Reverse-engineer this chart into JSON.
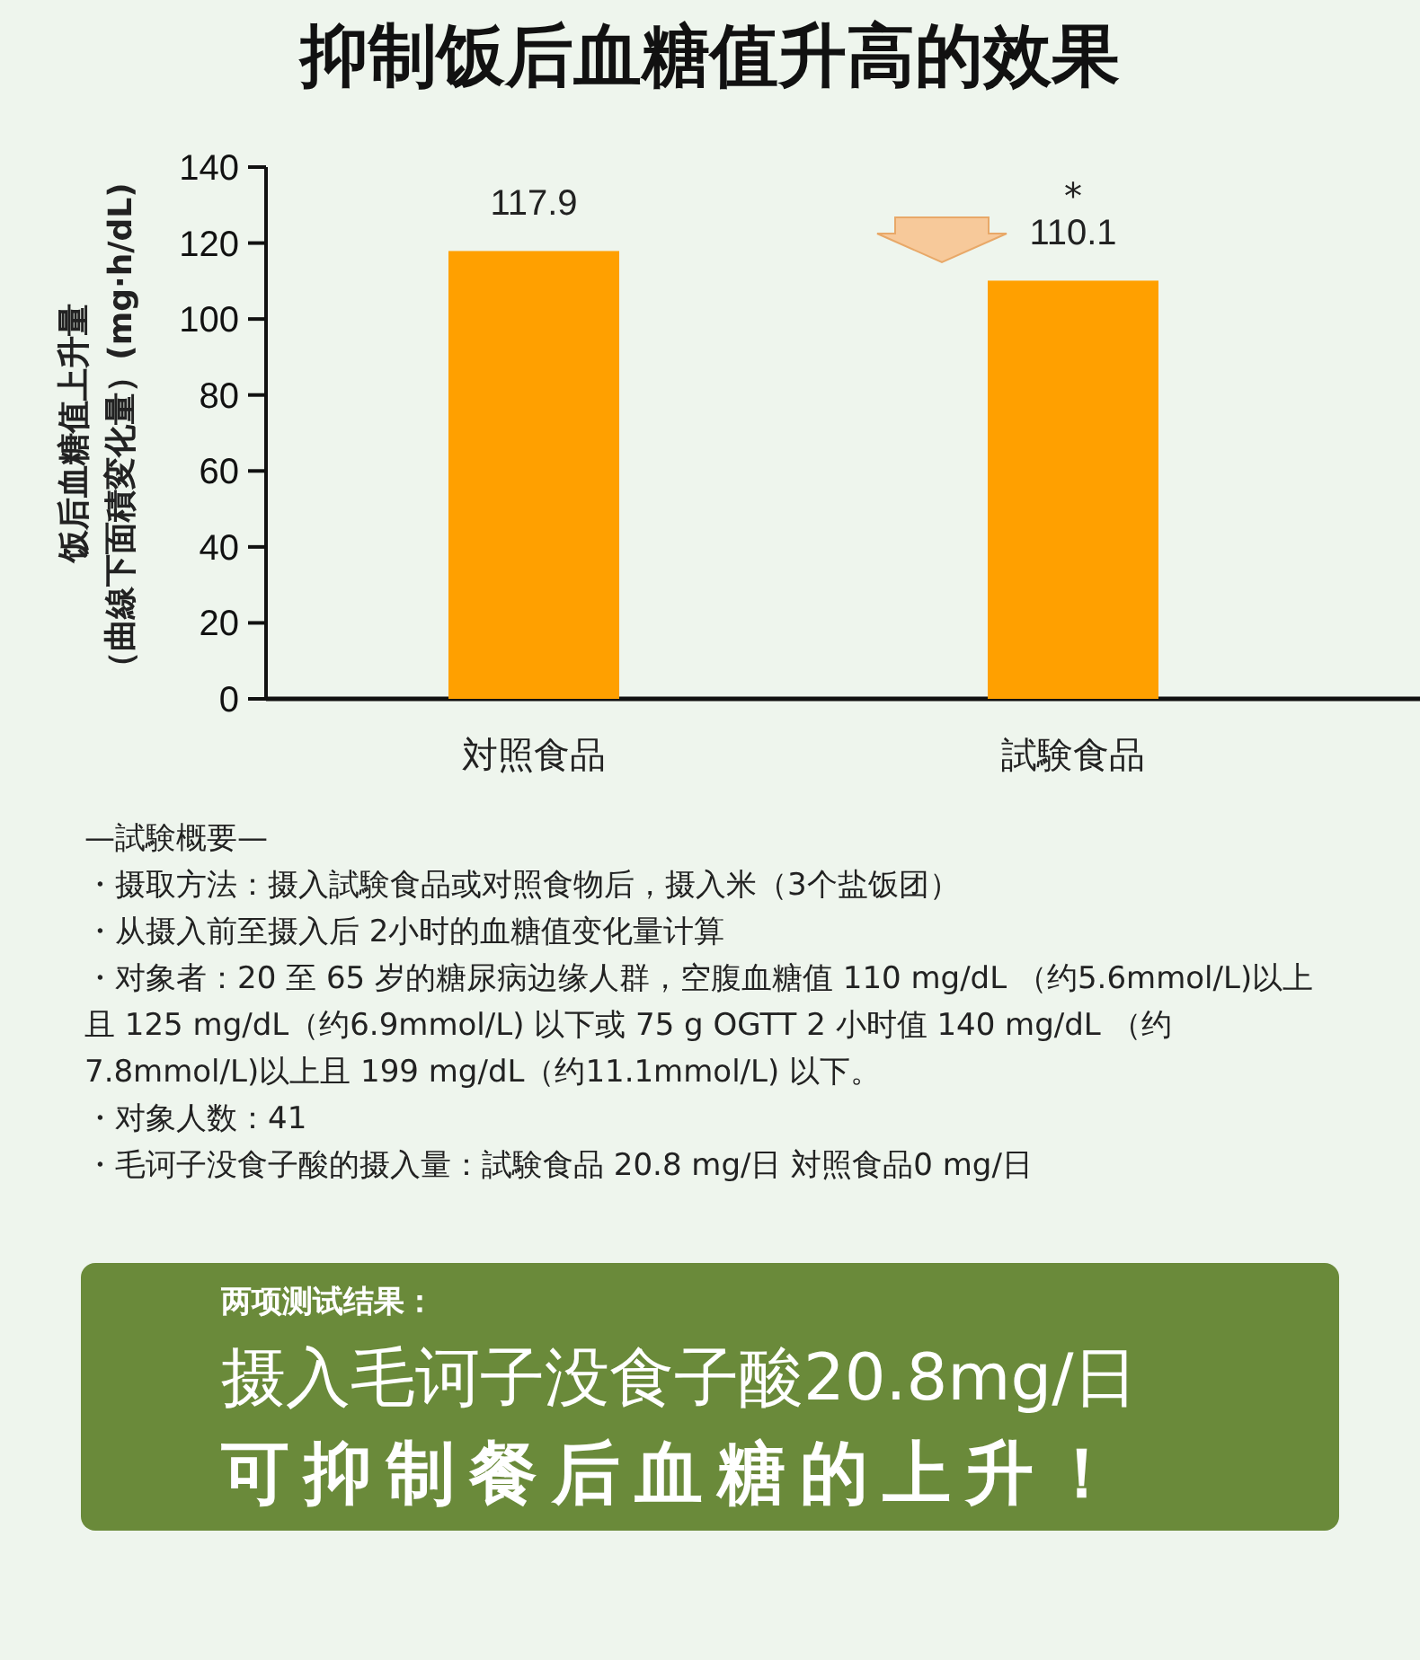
{
  "chart_data": {
    "type": "bar",
    "title": "抑制饭后血糖值升高的效果",
    "ylabel": "饭后血糖值上升量（曲線下面積変化量）(mg·h/dL)",
    "categories": [
      "対照食品",
      "試験食品"
    ],
    "values": [
      117.9,
      110.1
    ],
    "color": "#ffa000",
    "data_labels": true,
    "ylim": [
      0,
      140
    ],
    "yticks": [
      0,
      20,
      40,
      60,
      80,
      100,
      120,
      140
    ],
    "grid": false,
    "annotations": [
      {
        "text": "*",
        "x": "試験食品",
        "y": 110.1
      },
      "—試験概要—",
      "・摄取方法：摄入試験食品或对照食物后，摄入米（3个盐饭团）",
      "・从摄入前至摄入后 2小时的血糖值变化量计算",
      "・对象者：20 至 65 岁的糖尿病边缘人群，空腹血糖值 110 mg/dL （约5.6mmol/L)以上且 125 mg/dL（约6.9mmol/L) 以下或 75 g OGTT 2 小时值 140 mg/dL （约7.8mmol/L)以上且 199 mg/dL（约11.1mmol/L) 以下。",
      "・对象人数：41",
      "・毛诃子没食子酸的摄入量：試験食品 20.8 mg/日  対照食品0 mg/日",
      "两项测试结果：",
      "摄入毛诃子没食子酸20.8mg/日",
      "可抑制餐后血糖的上升！"
    ]
  }
}
